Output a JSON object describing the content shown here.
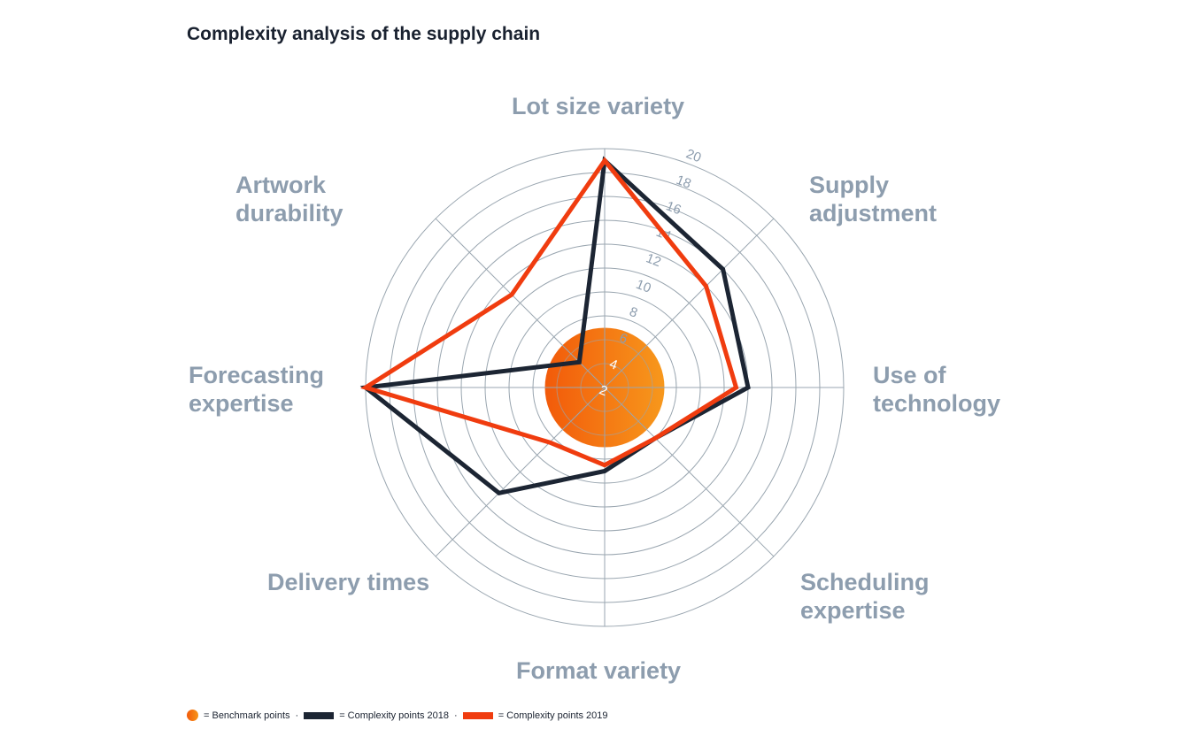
{
  "chart_data": {
    "type": "radar",
    "title": "Complexity analysis of the supply chain",
    "axes": [
      "Lot size variety",
      "Supply adjustment",
      "Use of technology",
      "Scheduling expertise",
      "Format variety",
      "Delivery times",
      "Forecasting expertise",
      "Artwork durability"
    ],
    "axis_labels": [
      [
        "Lot size variety"
      ],
      [
        "Supply",
        "adjustment"
      ],
      [
        "Use of",
        "technology"
      ],
      [
        "Scheduling",
        "expertise"
      ],
      [
        "Format variety"
      ],
      [
        "Delivery times"
      ],
      [
        "Forecasting",
        "expertise"
      ],
      [
        "Artwork",
        "durability"
      ]
    ],
    "rlim": [
      0,
      20
    ],
    "ticks": [
      "2",
      "4",
      "6",
      "8",
      "10",
      "12",
      "14",
      "16",
      "18",
      "20"
    ],
    "tick_values": [
      2,
      4,
      6,
      8,
      10,
      12,
      14,
      16,
      18,
      20
    ],
    "benchmark": 5,
    "series": [
      {
        "name": "Complexity points 2018",
        "color": "#1c2533",
        "values": [
          19,
          14,
          12,
          6,
          7,
          12.5,
          20,
          3
        ]
      },
      {
        "name": "Complexity points 2019",
        "color": "#f03c0f",
        "values": [
          19,
          12,
          11,
          6,
          6.5,
          6.5,
          20,
          11
        ]
      }
    ],
    "legend": {
      "placement": "bottom-left",
      "benchmark": "= Benchmark points",
      "s2018": "= Complexity points 2018",
      "s2019": "= Complexity points 2019",
      "sep": "·"
    }
  }
}
